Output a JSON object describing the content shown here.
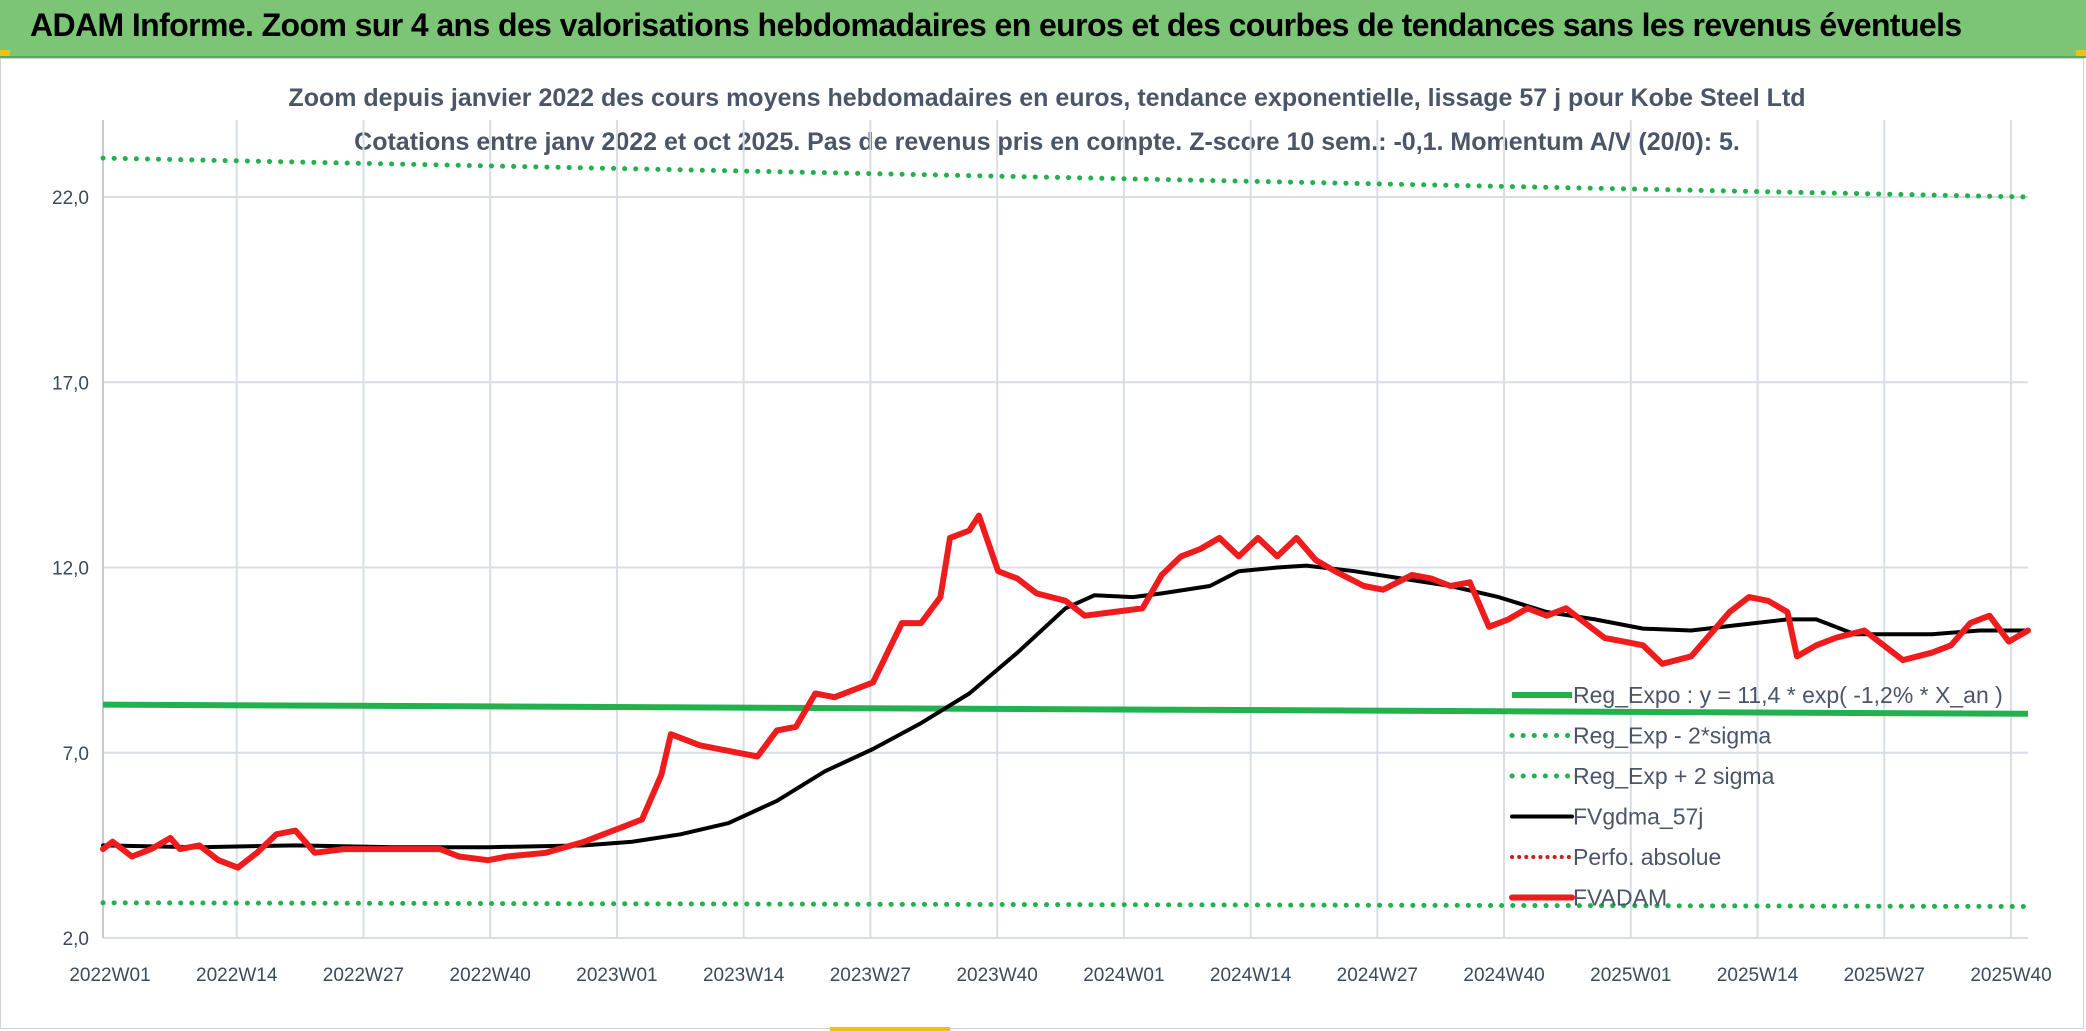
{
  "header": {
    "title": "ADAM Informe. Zoom sur 4 ans des valorisations hebdomadaires en euros et des courbes de tendances sans les revenus éventuels"
  },
  "colors": {
    "banner": "#7cc576",
    "grid": "#d9dee4",
    "reg_expo": "#22b14c",
    "fvgdma": "#000000",
    "fvadam": "#ee1c1c",
    "perfo": "#d01c1c"
  },
  "chart_data": {
    "type": "line",
    "title_line1": "Zoom depuis janvier 2022 des cours moyens hebdomadaires en euros, tendance exponentielle, lissage 57 j pour Kobe Steel Ltd",
    "title_line2": "Cotations entre janv 2022 et oct 2025. Pas de revenus pris en compte. Z-score 10 sem.: -0,1. Momentum A/V (20/0): 5.",
    "y_ticks": [
      "2,0",
      "7,0",
      "12,0",
      "17,0",
      "22,0"
    ],
    "y_tick_values": [
      2,
      7,
      12,
      17,
      22
    ],
    "ylim": [
      2,
      24
    ],
    "x_ticks": [
      "2022W01",
      "2022W14",
      "2022W27",
      "2022W40",
      "2023W01",
      "2023W14",
      "2023W27",
      "2023W40",
      "2024W01",
      "2024W14",
      "2024W27",
      "2024W40",
      "2025W01",
      "2025W14",
      "2025W27",
      "2025W40"
    ],
    "x_range_weeks": [
      0,
      200
    ],
    "legend_position": "bottom-right",
    "series": [
      {
        "name": "Reg_Expo : y = 11,4 * exp( -1,2% *  X_an )",
        "style": "solid-thick",
        "points": [
          [
            0,
            8.3
          ],
          [
            200,
            8.05
          ]
        ]
      },
      {
        "name": "Reg_Exp - 2*sigma",
        "style": "dotted",
        "points": [
          [
            0,
            2.95
          ],
          [
            200,
            2.85
          ]
        ]
      },
      {
        "name": "Reg_Exp + 2 sigma",
        "style": "dotted",
        "points": [
          [
            0,
            23.05
          ],
          [
            200,
            22.0
          ]
        ]
      },
      {
        "name": "FVgdma_57j",
        "style": "solid",
        "points": [
          [
            0,
            4.5
          ],
          [
            10,
            4.45
          ],
          [
            20,
            4.5
          ],
          [
            30,
            4.45
          ],
          [
            40,
            4.45
          ],
          [
            50,
            4.5
          ],
          [
            55,
            4.6
          ],
          [
            60,
            4.8
          ],
          [
            65,
            5.1
          ],
          [
            70,
            5.7
          ],
          [
            75,
            6.5
          ],
          [
            80,
            7.1
          ],
          [
            85,
            7.8
          ],
          [
            90,
            8.6
          ],
          [
            95,
            9.7
          ],
          [
            100,
            10.9
          ],
          [
            103,
            11.25
          ],
          [
            107,
            11.2
          ],
          [
            110,
            11.3
          ],
          [
            115,
            11.5
          ],
          [
            118,
            11.9
          ],
          [
            122,
            12.0
          ],
          [
            125,
            12.05
          ],
          [
            130,
            11.9
          ],
          [
            135,
            11.7
          ],
          [
            140,
            11.5
          ],
          [
            145,
            11.2
          ],
          [
            150,
            10.8
          ],
          [
            155,
            10.6
          ],
          [
            160,
            10.35
          ],
          [
            165,
            10.3
          ],
          [
            170,
            10.45
          ],
          [
            175,
            10.6
          ],
          [
            178,
            10.6
          ],
          [
            182,
            10.2
          ],
          [
            190,
            10.2
          ],
          [
            195,
            10.3
          ],
          [
            200,
            10.3
          ]
        ]
      },
      {
        "name": "Perfo. absolue",
        "style": "dotted-red",
        "points": []
      },
      {
        "name": "FVADAM",
        "style": "solid-thick",
        "points": [
          [
            0,
            4.4
          ],
          [
            1,
            4.6
          ],
          [
            3,
            4.2
          ],
          [
            5,
            4.4
          ],
          [
            7,
            4.7
          ],
          [
            8,
            4.4
          ],
          [
            10,
            4.5
          ],
          [
            12,
            4.1
          ],
          [
            14,
            3.9
          ],
          [
            16,
            4.3
          ],
          [
            18,
            4.8
          ],
          [
            20,
            4.9
          ],
          [
            22,
            4.3
          ],
          [
            25,
            4.4
          ],
          [
            30,
            4.4
          ],
          [
            35,
            4.4
          ],
          [
            37,
            4.2
          ],
          [
            40,
            4.1
          ],
          [
            42,
            4.2
          ],
          [
            46,
            4.3
          ],
          [
            50,
            4.6
          ],
          [
            52,
            4.8
          ],
          [
            54,
            5.0
          ],
          [
            56,
            5.2
          ],
          [
            58,
            6.4
          ],
          [
            59,
            7.5
          ],
          [
            62,
            7.2
          ],
          [
            66,
            7.0
          ],
          [
            68,
            6.9
          ],
          [
            70,
            7.6
          ],
          [
            72,
            7.7
          ],
          [
            74,
            8.6
          ],
          [
            76,
            8.5
          ],
          [
            78,
            8.7
          ],
          [
            80,
            8.9
          ],
          [
            83,
            10.5
          ],
          [
            85,
            10.5
          ],
          [
            87,
            11.2
          ],
          [
            88,
            12.8
          ],
          [
            90,
            13.0
          ],
          [
            91,
            13.4
          ],
          [
            93,
            11.9
          ],
          [
            95,
            11.7
          ],
          [
            97,
            11.3
          ],
          [
            100,
            11.1
          ],
          [
            102,
            10.7
          ],
          [
            105,
            10.8
          ],
          [
            108,
            10.9
          ],
          [
            110,
            11.8
          ],
          [
            112,
            12.3
          ],
          [
            114,
            12.5
          ],
          [
            116,
            12.8
          ],
          [
            118,
            12.3
          ],
          [
            120,
            12.8
          ],
          [
            122,
            12.3
          ],
          [
            124,
            12.8
          ],
          [
            126,
            12.2
          ],
          [
            128,
            11.9
          ],
          [
            131,
            11.5
          ],
          [
            133,
            11.4
          ],
          [
            136,
            11.8
          ],
          [
            138,
            11.7
          ],
          [
            140,
            11.5
          ],
          [
            142,
            11.6
          ],
          [
            144,
            10.4
          ],
          [
            146,
            10.6
          ],
          [
            148,
            10.9
          ],
          [
            150,
            10.7
          ],
          [
            152,
            10.9
          ],
          [
            154,
            10.5
          ],
          [
            156,
            10.1
          ],
          [
            158,
            10.0
          ],
          [
            160,
            9.9
          ],
          [
            162,
            9.4
          ],
          [
            165,
            9.6
          ],
          [
            167,
            10.2
          ],
          [
            169,
            10.8
          ],
          [
            171,
            11.2
          ],
          [
            173,
            11.1
          ],
          [
            175,
            10.8
          ],
          [
            176,
            9.6
          ],
          [
            178,
            9.9
          ],
          [
            180,
            10.1
          ],
          [
            183,
            10.3
          ],
          [
            185,
            9.9
          ],
          [
            187,
            9.5
          ],
          [
            190,
            9.7
          ],
          [
            192,
            9.9
          ],
          [
            194,
            10.5
          ],
          [
            196,
            10.7
          ],
          [
            198,
            10.0
          ],
          [
            200,
            10.3
          ]
        ]
      }
    ]
  }
}
